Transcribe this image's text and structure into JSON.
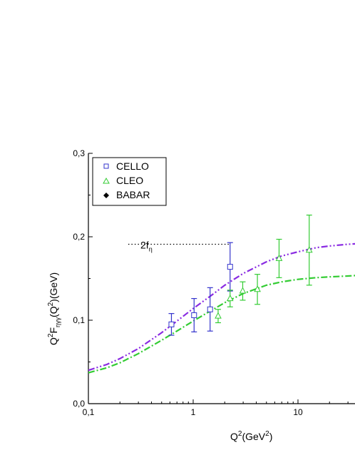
{
  "chart_data": {
    "type": "scatter",
    "x_scale": "log",
    "xlim": [
      0.1,
      40
    ],
    "ylim": [
      0.0,
      0.3
    ],
    "x_ticks": [
      {
        "value": 0.1,
        "label": "0,1"
      },
      {
        "value": 1,
        "label": "1"
      },
      {
        "value": 10,
        "label": "10"
      }
    ],
    "y_ticks": [
      {
        "value": 0.0,
        "label": "0,0"
      },
      {
        "value": 0.1,
        "label": "0,1"
      },
      {
        "value": 0.2,
        "label": "0,2"
      },
      {
        "value": 0.3,
        "label": "0,3"
      }
    ],
    "xlabel": {
      "main": "Q",
      "sup": "2",
      "rest": "(GeV",
      "sup2": "2",
      "end": ")"
    },
    "ylabel": {
      "p1": "Q",
      "s1": "2",
      "p2": "F",
      "sub": "ηγγ",
      "p3": "(Q",
      "s2": "2",
      "p4": ")(GeV)"
    },
    "grid": false,
    "legend_position": "top-left",
    "series": [
      {
        "name": "CELLO",
        "marker": "square-open",
        "color": "#3333cc",
        "points": [
          {
            "x": 0.62,
            "y": 0.095,
            "err": 0.013
          },
          {
            "x": 1.02,
            "y": 0.106,
            "err": 0.02
          },
          {
            "x": 1.45,
            "y": 0.113,
            "err": 0.026
          },
          {
            "x": 2.25,
            "y": 0.164,
            "err": 0.029
          }
        ]
      },
      {
        "name": "CLEO",
        "marker": "triangle-open",
        "color": "#33cc33",
        "points": [
          {
            "x": 1.73,
            "y": 0.105,
            "err": 0.008
          },
          {
            "x": 2.25,
            "y": 0.126,
            "err": 0.01
          },
          {
            "x": 2.97,
            "y": 0.135,
            "err": 0.011
          },
          {
            "x": 4.1,
            "y": 0.137,
            "err": 0.018
          },
          {
            "x": 6.6,
            "y": 0.174,
            "err": 0.023
          },
          {
            "x": 12.8,
            "y": 0.184,
            "err": 0.042
          }
        ]
      },
      {
        "name": "BABAR",
        "marker": "diamond-filled",
        "color": "#000000",
        "points": []
      }
    ],
    "curves": [
      {
        "style": "dash-dot-dot",
        "color": "#8a2be2",
        "points": [
          [
            0.1,
            0.04
          ],
          [
            0.15,
            0.047
          ],
          [
            0.2,
            0.054
          ],
          [
            0.3,
            0.066
          ],
          [
            0.5,
            0.085
          ],
          [
            0.7,
            0.099
          ],
          [
            1,
            0.114
          ],
          [
            1.5,
            0.13
          ],
          [
            2,
            0.142
          ],
          [
            3,
            0.156
          ],
          [
            5,
            0.17
          ],
          [
            7,
            0.177
          ],
          [
            10,
            0.182
          ],
          [
            15,
            0.187
          ],
          [
            20,
            0.189
          ],
          [
            30,
            0.191
          ],
          [
            40,
            0.192
          ]
        ]
      },
      {
        "style": "dash-dot",
        "color": "#33cc33",
        "points": [
          [
            0.1,
            0.037
          ],
          [
            0.15,
            0.043
          ],
          [
            0.2,
            0.049
          ],
          [
            0.3,
            0.06
          ],
          [
            0.5,
            0.076
          ],
          [
            0.7,
            0.087
          ],
          [
            1,
            0.099
          ],
          [
            1.5,
            0.112
          ],
          [
            2,
            0.121
          ],
          [
            3,
            0.132
          ],
          [
            5,
            0.142
          ],
          [
            7,
            0.146
          ],
          [
            10,
            0.149
          ],
          [
            15,
            0.151
          ],
          [
            20,
            0.152
          ],
          [
            30,
            0.153
          ],
          [
            40,
            0.154
          ]
        ]
      }
    ],
    "annotation": {
      "main": "2f",
      "sub": "η",
      "y": 0.191,
      "line_x": [
        0.24,
        2.25
      ]
    }
  }
}
